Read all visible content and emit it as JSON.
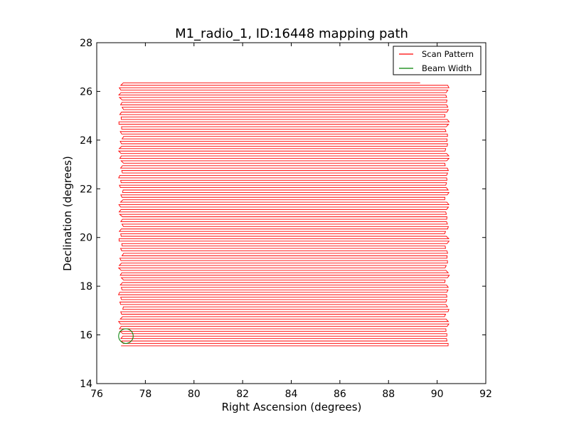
{
  "chart_data": {
    "type": "line",
    "title": "M1_radio_1, ID:16448 mapping path",
    "xlabel": "Right Ascension (degrees)",
    "ylabel": "Declination (degrees)",
    "xlim": [
      76,
      92
    ],
    "ylim": [
      14,
      28
    ],
    "xticks": [
      "76",
      "78",
      "80",
      "82",
      "84",
      "86",
      "88",
      "90",
      "92"
    ],
    "yticks": [
      "14",
      "16",
      "18",
      "20",
      "22",
      "24",
      "26",
      "28"
    ],
    "grid": false,
    "legend_position": "top-right",
    "series": [
      {
        "name": "Scan Pattern",
        "color": "#ff0000",
        "style": "raster",
        "ra_range": [
          77.0,
          90.4
        ],
        "dec_start": 15.55,
        "dec_end": 26.4,
        "row_spacing": 0.1,
        "last_row_ra_end": 89.3
      },
      {
        "name": "Beam Width",
        "color": "#008000",
        "style": "circle",
        "center": [
          77.2,
          15.95
        ],
        "radius": 0.3
      }
    ]
  }
}
